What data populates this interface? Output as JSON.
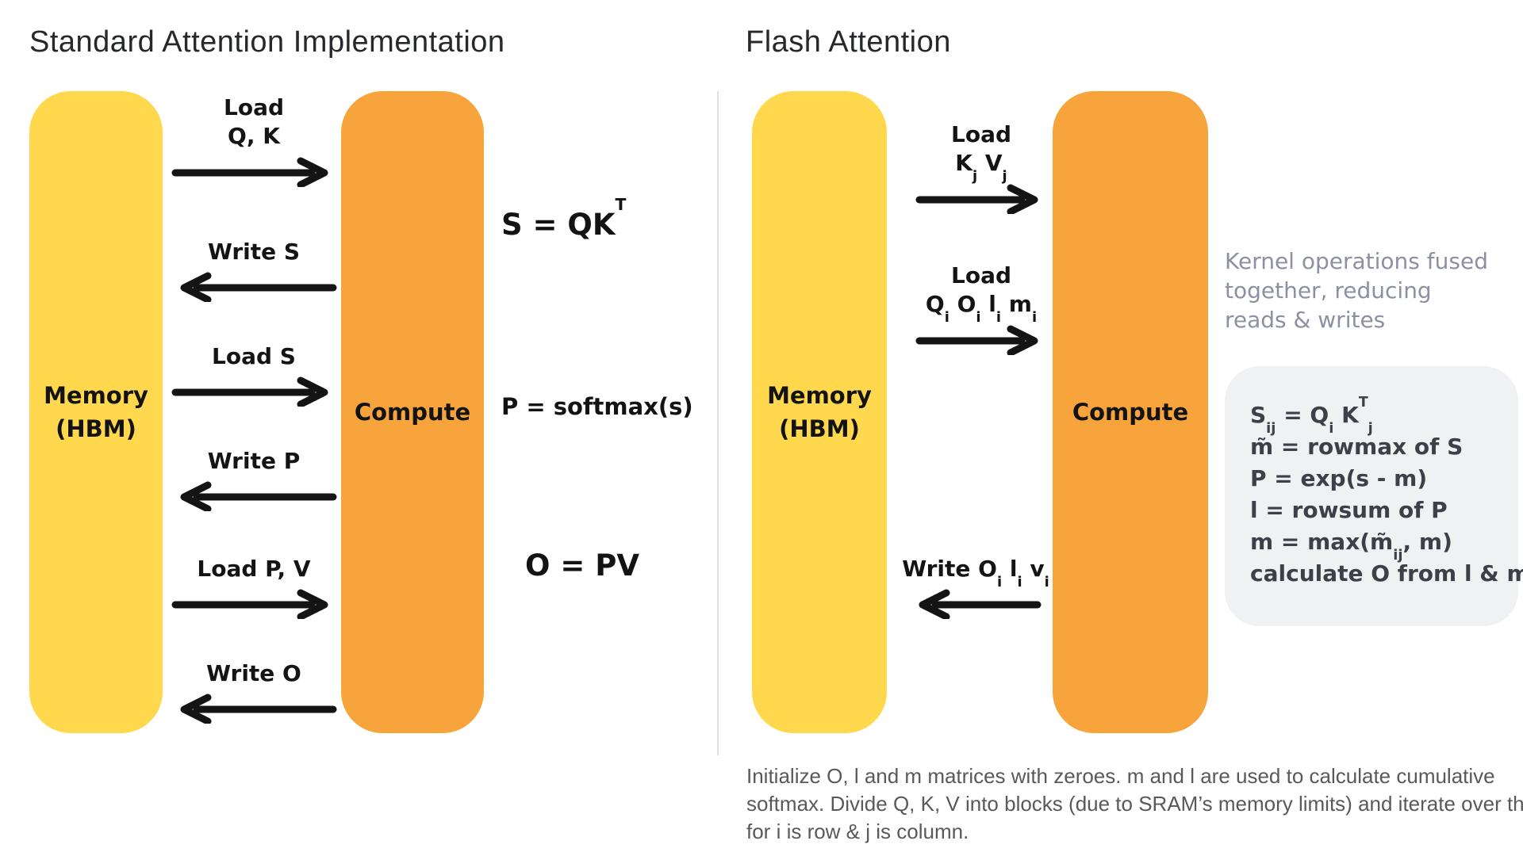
{
  "left": {
    "title": "Standard Attention Implementation",
    "memory_label_line1": "Memory",
    "memory_label_line2": "(HBM)",
    "compute_label": "Compute",
    "arrows": [
      {
        "lines": [
          "Load",
          "Q, K"
        ],
        "dir": "right"
      },
      {
        "lines": [
          "Write S"
        ],
        "dir": "left"
      },
      {
        "lines": [
          "Load S"
        ],
        "dir": "right"
      },
      {
        "lines": [
          "Write P"
        ],
        "dir": "left"
      },
      {
        "lines": [
          "Load P, V"
        ],
        "dir": "right"
      },
      {
        "lines": [
          "Write O"
        ],
        "dir": "left"
      }
    ],
    "formulas": [
      "S = QK^{T}",
      "P = softmax(s)",
      "O = PV"
    ]
  },
  "right": {
    "title": "Flash Attention",
    "memory_label_line1": "Memory",
    "memory_label_line2": "(HBM)",
    "compute_label": "Compute",
    "arrows": [
      {
        "lines": [
          "Load",
          "K_{j}   V_{j}"
        ],
        "dir": "right"
      },
      {
        "lines": [
          "Load",
          "Q_{i} O_{i} l_{i} m_{i}"
        ],
        "dir": "right"
      },
      {
        "lines": [
          "Write O_{i} l_{i} v_{i}"
        ],
        "dir": "left"
      }
    ],
    "note": "Kernel operations fused together, reducing reads & writes",
    "box_formulas": [
      "S_{ij} = Q_{i} K^{T}_{j}",
      "m̃ = rowmax of S",
      "P = exp(s - m)",
      "l = rowsum of P",
      "m = max(m̃_{ij}, m)",
      "calculate O from l & m"
    ],
    "footnote": "Initialize O, l and m matrices with zeroes. m and l are used to calculate cumulative softmax. Divide Q, K, V into blocks (due to SRAM’s memory limits) and iterate over them, for i is row & j is column."
  },
  "colors": {
    "memory_yellow": "#FFD84E",
    "compute_orange": "#F7A43C",
    "arrow_black": "#141414",
    "note_gray": "#8B91A2",
    "box_bg": "#F0F1F3",
    "box_text": "#3D4049",
    "footnote_gray": "#57595E"
  }
}
